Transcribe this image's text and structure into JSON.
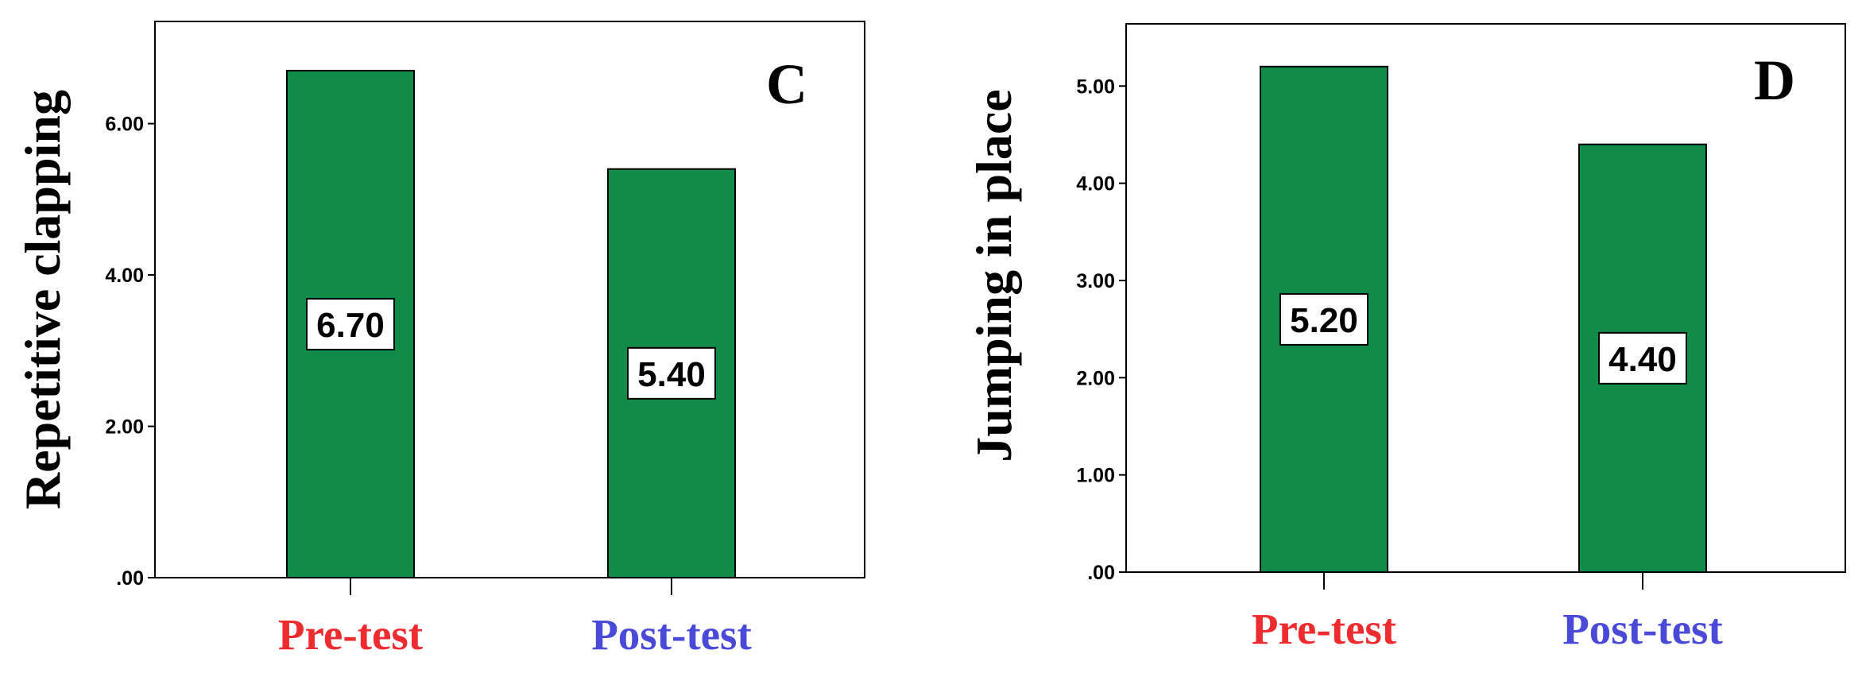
{
  "chart_data": [
    {
      "type": "bar",
      "panel": "C",
      "categories": [
        "Pre-test",
        "Post-test"
      ],
      "category_colors": [
        "#ee2b2f",
        "#4a4ad8"
      ],
      "values": [
        6.7,
        5.4
      ],
      "data_labels": [
        "6.70",
        "5.40"
      ],
      "ylabel": "Repetitive clapping",
      "xlabel": "",
      "ylim": [
        0,
        7.35
      ],
      "yticks": [
        0,
        2,
        4,
        6
      ],
      "ytick_labels": [
        ".00",
        "2.00",
        "4.00",
        "6.00"
      ],
      "bar_color": "#108b48",
      "grid": false
    },
    {
      "type": "bar",
      "panel": "D",
      "categories": [
        "Pre-test",
        "Post-test"
      ],
      "category_colors": [
        "#ee2b2f",
        "#4a4ad8"
      ],
      "values": [
        5.2,
        4.4
      ],
      "data_labels": [
        "5.20",
        "4.40"
      ],
      "ylabel": "Jumping in place",
      "xlabel": "",
      "ylim": [
        0,
        5.64
      ],
      "yticks": [
        0,
        1,
        2,
        3,
        4,
        5
      ],
      "ytick_labels": [
        ".00",
        "1.00",
        "2.00",
        "3.00",
        "4.00",
        "5.00"
      ],
      "bar_color": "#108b48",
      "grid": false
    }
  ]
}
